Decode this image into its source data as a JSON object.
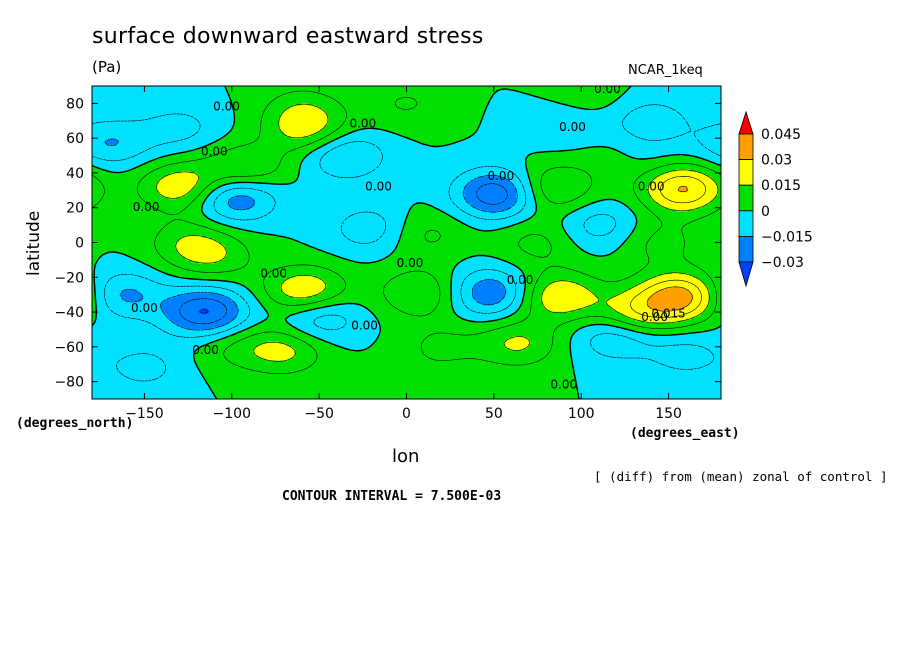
{
  "chart_data": {
    "type": "contour",
    "title": "surface downward eastward stress",
    "units": "(Pa)",
    "run_name": "NCAR_1keq",
    "xlabel": "lon",
    "ylabel": "latitude",
    "x_units": "(degrees_east)",
    "y_units": "(degrees_north)",
    "xlim": [
      -180,
      180
    ],
    "ylim": [
      -90,
      90
    ],
    "x_ticks": [
      -150,
      -100,
      -50,
      0,
      50,
      100,
      150
    ],
    "y_ticks": [
      80,
      60,
      40,
      20,
      0,
      -20,
      -40,
      -60,
      -80
    ],
    "x_tick_labels": [
      "−150",
      "−100",
      "−50",
      "0",
      "50",
      "100",
      "150"
    ],
    "y_tick_labels": [
      "80",
      "60",
      "40",
      "20",
      "0",
      "−20",
      "−40",
      "−60",
      "−80"
    ],
    "contour_interval": 0.0075,
    "contour_label_text": "0.00",
    "extra_contour_label": "0.015",
    "colorbar": {
      "levels": [
        -0.03,
        -0.015,
        0,
        0.015,
        0.03,
        0.045
      ],
      "labels": [
        "0.045",
        "0.03",
        "0.015",
        "0",
        "−0.015",
        "−0.03"
      ],
      "colors": [
        "#ff0000",
        "#ff9f00",
        "#ffff00",
        "#00e000",
        "#00e0ff",
        "#0080ff",
        "#0040ff"
      ]
    },
    "field_features": [
      {
        "lon": -129,
        "lat": 32,
        "value": 0.022
      },
      {
        "lon": -93,
        "lat": 42,
        "value": 0.018
      },
      {
        "lon": -57,
        "lat": 65,
        "value": 0.018
      },
      {
        "lon": -58,
        "lat": -28,
        "value": 0.024
      },
      {
        "lon": -70,
        "lat": -62,
        "value": 0.017
      },
      {
        "lon": 8,
        "lat": -29,
        "value": 0.016
      },
      {
        "lon": 64,
        "lat": -58,
        "value": 0.016
      },
      {
        "lon": 83,
        "lat": 31,
        "value": 0.018
      },
      {
        "lon": 87,
        "lat": -31,
        "value": 0.023
      },
      {
        "lon": 131,
        "lat": -41,
        "value": 0.02
      },
      {
        "lon": 157,
        "lat": -31,
        "value": 0.033
      },
      {
        "lon": 158,
        "lat": 31,
        "value": 0.031
      },
      {
        "lon": 125,
        "lat": 47,
        "value": 0.016
      },
      {
        "lon": -115,
        "lat": -40,
        "value": -0.031
      },
      {
        "lon": -98,
        "lat": 26,
        "value": -0.024
      },
      {
        "lon": 52,
        "lat": 28,
        "value": -0.03
      },
      {
        "lon": 48,
        "lat": -29,
        "value": -0.023
      },
      {
        "lon": -163,
        "lat": -30,
        "value": -0.017
      },
      {
        "lon": -170,
        "lat": 57,
        "value": -0.015
      },
      {
        "lon": 130,
        "lat": 47,
        "value": -0.016
      },
      {
        "lon": -35,
        "lat": 50,
        "value": -0.017
      },
      {
        "lon": -50,
        "lat": -43,
        "value": -0.016
      },
      {
        "lon": 120,
        "lat": -54,
        "value": -0.016
      },
      {
        "lon": 110,
        "lat": 10,
        "value": -0.012
      },
      {
        "lon": -20,
        "lat": 8,
        "value": -0.013
      },
      {
        "lon": 90,
        "lat": 70,
        "value": -0.01
      },
      {
        "lon": 140,
        "lat": 70,
        "value": -0.012
      },
      {
        "lon": -130,
        "lat": 66,
        "value": -0.01
      },
      {
        "lon": -125,
        "lat": 0,
        "value": 0.012
      },
      {
        "lon": -110,
        "lat": -8,
        "value": 0.012
      },
      {
        "lon": 10,
        "lat": 5,
        "value": 0.01
      },
      {
        "lon": 75,
        "lat": 0,
        "value": 0.01
      },
      {
        "lon": 145,
        "lat": 0,
        "value": 0.01
      },
      {
        "lon": 0,
        "lat": 80,
        "value": 0.008
      },
      {
        "lon": -60,
        "lat": 78,
        "value": 0.009
      },
      {
        "lon": 100,
        "lat": 82,
        "value": 0.008
      },
      {
        "lon": 0,
        "lat": -85,
        "value": 0.005
      },
      {
        "lon": -100,
        "lat": -60,
        "value": 0.008
      },
      {
        "lon": 20,
        "lat": -60,
        "value": 0.009
      },
      {
        "lon": 160,
        "lat": -65,
        "value": -0.01
      },
      {
        "lon": -150,
        "lat": -72,
        "value": -0.01
      }
    ]
  },
  "footer": {
    "note": "[ (diff) from (mean) zonal of control ]",
    "interval_text": "CONTOUR INTERVAL = 7.500E-03"
  }
}
